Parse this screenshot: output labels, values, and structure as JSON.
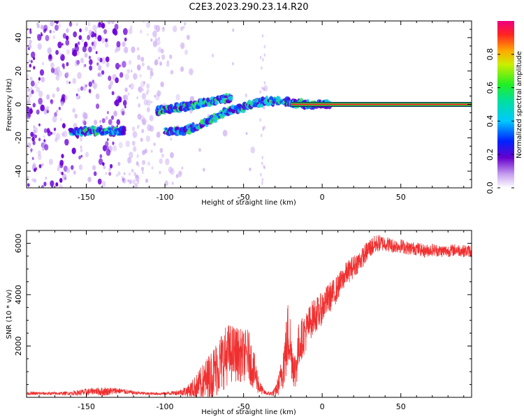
{
  "title": "C2E3.2023.290.23.14.R20",
  "colors": {
    "snr_line": "#f03030",
    "carrier_band": "#22c040",
    "carrier_core": "#ff2a2a",
    "scatter_dense": "#6a00d8",
    "scatter_light": "#c9a8f2"
  },
  "chart_data": [
    {
      "type": "heatmap",
      "name": "spectrogram",
      "xlabel": "Height of straight line (km)",
      "ylabel": "Frequency (Hz)",
      "xlim": [
        -188,
        95
      ],
      "ylim": [
        -50,
        50
      ],
      "xticks": [
        -150,
        -100,
        -50,
        0,
        50
      ],
      "xtick_labels": [
        "-150",
        "-100",
        "-50",
        "0",
        "50"
      ],
      "yticks": [
        -40,
        -20,
        0,
        20,
        40
      ],
      "ytick_labels": [
        "-40",
        "-20",
        "0",
        "20",
        "40"
      ],
      "colorbar": {
        "label": "Normalized spectral amplitude",
        "range": [
          0,
          1
        ],
        "ticks": [
          0.0,
          0.2,
          0.4,
          0.6,
          0.8
        ],
        "tick_labels": [
          "0.0",
          "0.2",
          "0.4",
          "0.6",
          "0.8"
        ]
      },
      "carrier_track": {
        "x": [
          -155,
          -130,
          -125,
          -100,
          -90,
          -85,
          -80,
          -75,
          -70,
          -65,
          -60,
          -55,
          -50,
          -45,
          -40,
          -35,
          -30,
          -25,
          -20,
          -10,
          0,
          5,
          95
        ],
        "y": [
          -16,
          -16,
          -16,
          -16,
          -16,
          -15,
          -13,
          -11,
          -9,
          -6,
          -4,
          -3,
          -2,
          0,
          1,
          2,
          2,
          2,
          1,
          0,
          0,
          0,
          0
        ]
      },
      "upper_branch": {
        "x": [
          -105,
          -95,
          -85,
          -75,
          -65,
          -58
        ],
        "y": [
          -4,
          -2,
          -1,
          1,
          3,
          4
        ]
      },
      "steady_carrier": {
        "x_start": -20,
        "x_end": 95,
        "frequency": 0
      }
    },
    {
      "type": "line",
      "name": "snr",
      "xlabel": "Height of straight line (km)",
      "ylabel": "SNR (10 * v/v)",
      "xlim": [
        -188,
        95
      ],
      "ylim": [
        0,
        6500
      ],
      "xticks": [
        -150,
        -100,
        -50,
        0,
        50
      ],
      "xtick_labels": [
        "-150",
        "-100",
        "-50",
        "0",
        "50"
      ],
      "yticks": [
        2000,
        4000,
        6000
      ],
      "ytick_labels": [
        "2000",
        "4000",
        "6000"
      ],
      "series": [
        {
          "name": "SNR",
          "x": [
            -188,
            -170,
            -160,
            -150,
            -145,
            -140,
            -130,
            -120,
            -110,
            -100,
            -95,
            -90,
            -85,
            -80,
            -75,
            -70,
            -65,
            -60,
            -55,
            -50,
            -47,
            -45,
            -42,
            -40,
            -37,
            -35,
            -32,
            -30,
            -27,
            -25,
            -23,
            -22,
            -21,
            -20,
            -19,
            -18,
            -17,
            -16,
            -15,
            -13,
            -10,
            -8,
            -5,
            -2,
            0,
            2,
            5,
            8,
            10,
            15,
            20,
            25,
            30,
            35,
            40,
            45,
            50,
            55,
            60,
            65,
            70,
            75,
            80,
            85,
            90,
            95
          ],
          "mean": [
            150,
            150,
            160,
            200,
            250,
            220,
            260,
            180,
            140,
            150,
            170,
            200,
            260,
            400,
            600,
            900,
            1300,
            1700,
            1700,
            1600,
            1700,
            1300,
            800,
            400,
            200,
            150,
            150,
            200,
            600,
            1200,
            1800,
            2300,
            2700,
            1800,
            1500,
            1200,
            1000,
            1500,
            2000,
            2300,
            2600,
            2900,
            3200,
            3300,
            3500,
            3700,
            3900,
            4100,
            4300,
            4800,
            5100,
            5400,
            5800,
            6000,
            6000,
            5900,
            5900,
            5800,
            5800,
            5700,
            5750,
            5700,
            5700,
            5750,
            5700,
            5700
          ],
          "amp": [
            60,
            60,
            70,
            150,
            120,
            180,
            120,
            70,
            50,
            60,
            80,
            120,
            250,
            500,
            800,
            1000,
            1200,
            1200,
            1100,
            1000,
            1000,
            900,
            600,
            300,
            100,
            80,
            100,
            200,
            500,
            900,
            1200,
            1400,
            1700,
            1000,
            900,
            800,
            800,
            900,
            900,
            800,
            800,
            700,
            700,
            650,
            650,
            600,
            600,
            550,
            500,
            450,
            450,
            400,
            400,
            350,
            300,
            280,
            280,
            260,
            260,
            250,
            250,
            240,
            240,
            240,
            240,
            240
          ]
        }
      ]
    }
  ]
}
